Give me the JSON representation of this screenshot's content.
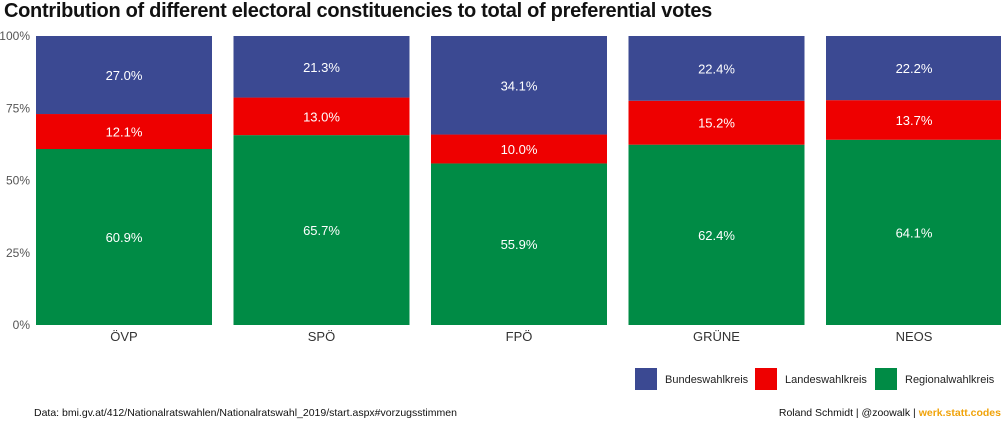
{
  "title": "Contribution of different electoral constituencies to total of preferential votes",
  "footer": {
    "source": "Data: bmi.gv.at/412/Nationalratswahlen/Nationalratswahl_2019/start.aspx#vorzugsstimmen",
    "credit": "Roland Schmidt | @zoowalk | ",
    "brand": "werk.statt.codes"
  },
  "chart_data": {
    "type": "bar",
    "stacked": true,
    "categories": [
      "ÖVP",
      "SPÖ",
      "FPÖ",
      "GRÜNE",
      "NEOS"
    ],
    "series": [
      {
        "name": "Regionalwahlkreis",
        "color": "#008b45",
        "values": [
          60.9,
          65.7,
          55.9,
          62.4,
          64.1
        ]
      },
      {
        "name": "Landeswahlkreis",
        "color": "#ee0000",
        "values": [
          12.1,
          13.0,
          10.0,
          15.2,
          13.7
        ]
      },
      {
        "name": "Bundeswahlkreis",
        "color": "#3b4992",
        "values": [
          27.0,
          21.3,
          34.1,
          22.4,
          22.2
        ]
      }
    ],
    "data_labels": [
      [
        "60.9%",
        "65.7%",
        "55.9%",
        "62.4%",
        "64.1%"
      ],
      [
        "12.1%",
        "13.0%",
        "10.0%",
        "15.2%",
        "13.7%"
      ],
      [
        "27.0%",
        "21.3%",
        "34.1%",
        "22.4%",
        "22.2%"
      ]
    ],
    "y_ticks": [
      "0%",
      "25%",
      "50%",
      "75%",
      "100%"
    ],
    "ylim": [
      0,
      100
    ],
    "grid": false,
    "legend": {
      "position": "bottom-right",
      "items": [
        "Bundeswahlkreis",
        "Landeswahlkreis",
        "Regionalwahlkreis"
      ]
    }
  }
}
